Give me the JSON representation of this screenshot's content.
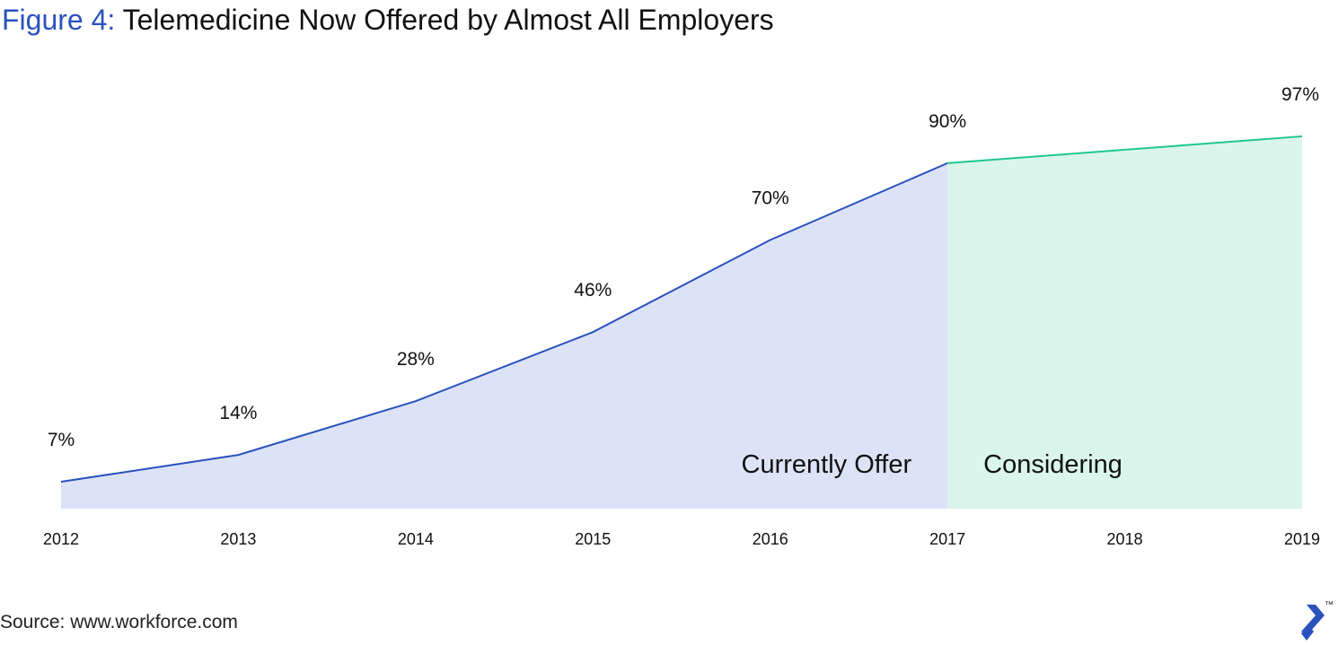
{
  "title": {
    "prefix": "Figure 4:",
    "text": "Telemedicine Now Offered by Almost All Employers"
  },
  "source": "Source: www.workforce.com",
  "logo": {
    "name": "toptal-logo",
    "tm": "™"
  },
  "colors": {
    "current_line": "#2a52be",
    "current_fill": "#dde3f7",
    "considering_line": "#1fc98a",
    "considering_fill": "#daf5ec",
    "logo": "#2a52be"
  },
  "chart_data": {
    "type": "area",
    "x": [
      "2012",
      "2013",
      "2014",
      "2015",
      "2016",
      "2017",
      "2018",
      "2019"
    ],
    "ylim": [
      0,
      100
    ],
    "grid": false,
    "series": [
      {
        "name": "Currently Offer",
        "x": [
          "2012",
          "2013",
          "2014",
          "2015",
          "2016",
          "2017"
        ],
        "values": [
          7,
          14,
          28,
          46,
          70,
          90
        ]
      },
      {
        "name": "Considering",
        "x": [
          "2017",
          "2019"
        ],
        "values": [
          90,
          97
        ]
      }
    ],
    "data_labels": [
      {
        "x": "2012",
        "text": "7%"
      },
      {
        "x": "2013",
        "text": "14%"
      },
      {
        "x": "2014",
        "text": "28%"
      },
      {
        "x": "2015",
        "text": "46%"
      },
      {
        "x": "2016",
        "text": "70%"
      },
      {
        "x": "2017",
        "text": "90%"
      },
      {
        "x": "2019",
        "text": "97%"
      }
    ]
  }
}
